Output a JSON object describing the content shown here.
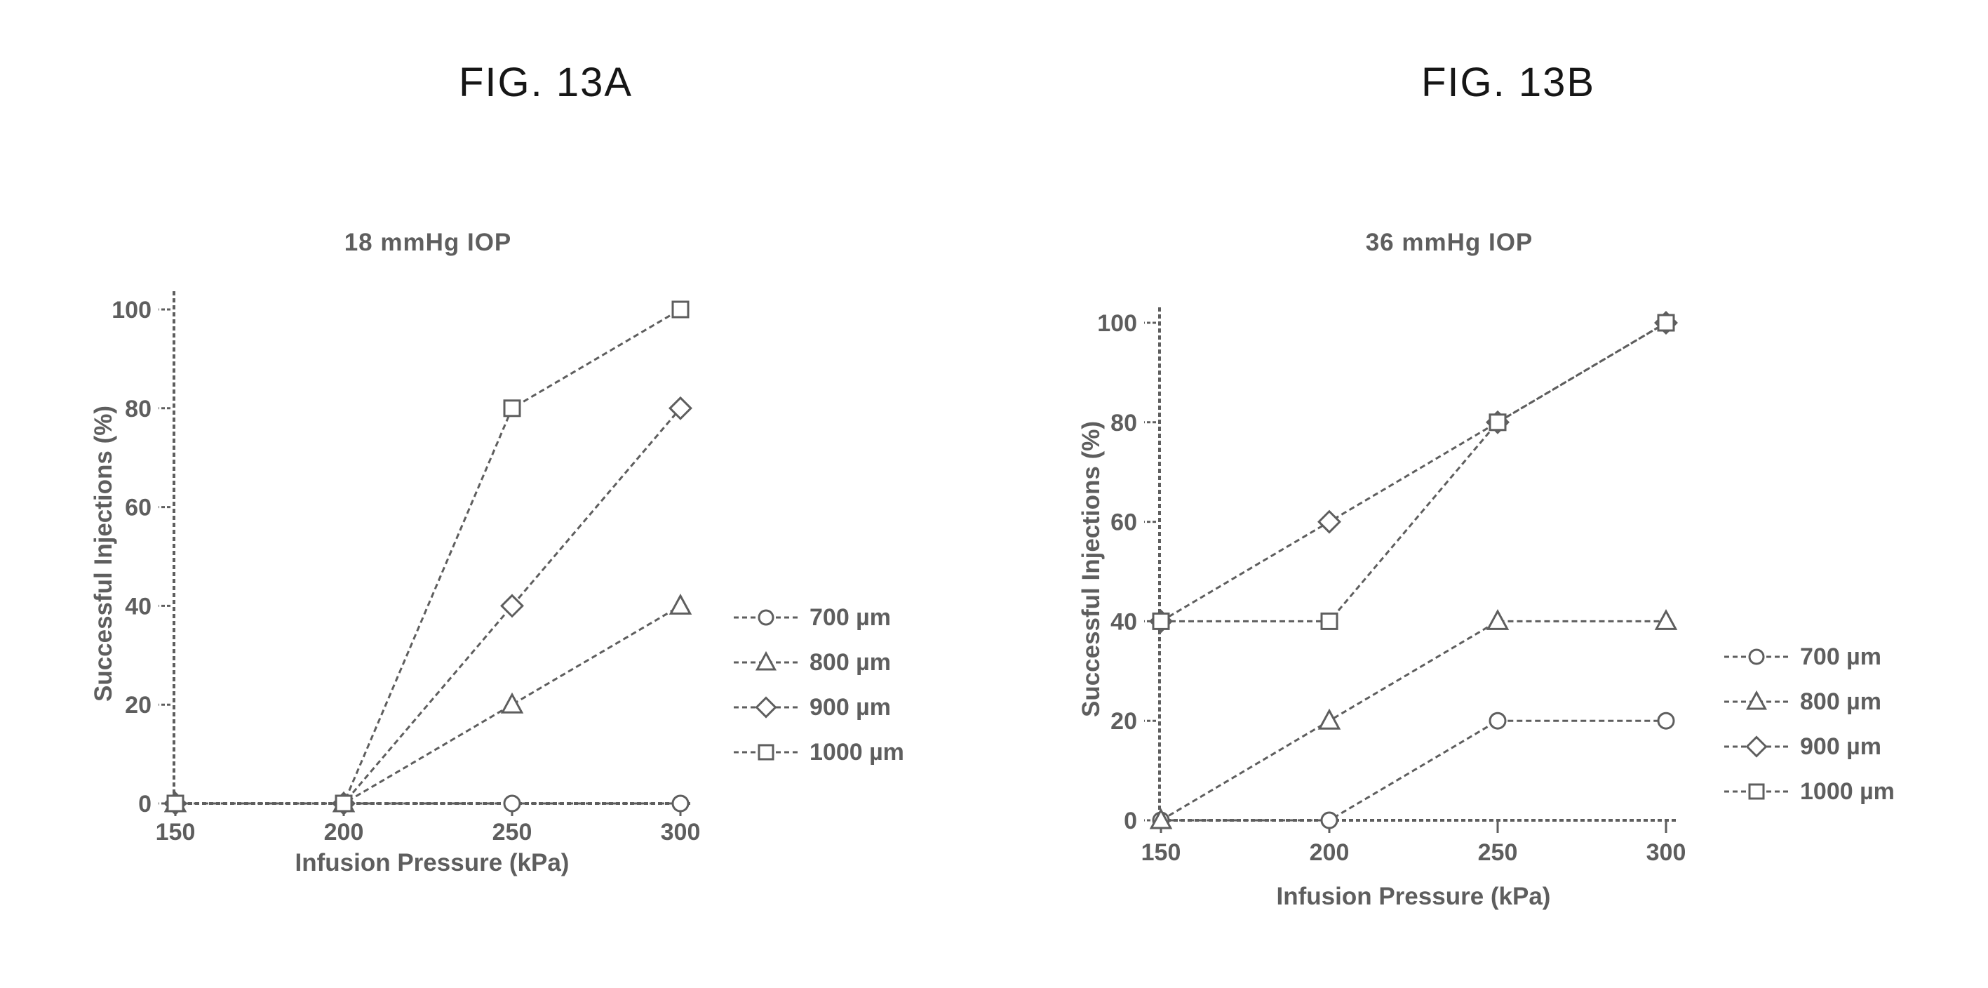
{
  "style": {
    "background": "#ffffff",
    "ink": "#5e5e5e",
    "fig_label_color": "#161616"
  },
  "figures": [
    {
      "label": "FIG. 13A"
    },
    {
      "label": "FIG. 13B"
    }
  ],
  "chart_data": [
    {
      "type": "line",
      "title": "18 mmHg IOP",
      "xlabel": "Infusion Pressure (kPa)",
      "ylabel": "Successful Injections (%)",
      "x": [
        150,
        200,
        250,
        300
      ],
      "xticks": [
        150,
        200,
        250,
        300
      ],
      "yticks": [
        0,
        20,
        40,
        60,
        80,
        100
      ],
      "xlim": [
        150,
        303
      ],
      "ylim": [
        0,
        104
      ],
      "grid": false,
      "line_style": "dashed",
      "legend_position": "right-outside",
      "series": [
        {
          "name": "700 µm",
          "marker": "circle",
          "values": [
            0,
            0,
            0,
            0
          ]
        },
        {
          "name": "800 µm",
          "marker": "triangle",
          "values": [
            0,
            0,
            20,
            40
          ]
        },
        {
          "name": "900 µm",
          "marker": "diamond",
          "values": [
            0,
            0,
            40,
            80
          ]
        },
        {
          "name": "1000 µm",
          "marker": "square",
          "values": [
            0,
            0,
            80,
            100
          ]
        }
      ]
    },
    {
      "type": "line",
      "title": "36 mmHg IOP",
      "xlabel": "Infusion Pressure (kPa)",
      "ylabel": "Successful Injections (%)",
      "x": [
        150,
        200,
        250,
        300
      ],
      "xticks": [
        150,
        200,
        250,
        300
      ],
      "yticks": [
        0,
        20,
        40,
        60,
        80,
        100
      ],
      "xlim": [
        150,
        303
      ],
      "ylim": [
        0,
        104
      ],
      "grid": false,
      "line_style": "dashed",
      "legend_position": "right-outside",
      "series": [
        {
          "name": "700 µm",
          "marker": "circle",
          "values": [
            0,
            0,
            20,
            20
          ]
        },
        {
          "name": "800 µm",
          "marker": "triangle",
          "values": [
            0,
            20,
            40,
            40
          ]
        },
        {
          "name": "900 µm",
          "marker": "diamond",
          "values": [
            40,
            60,
            80,
            100
          ]
        },
        {
          "name": "1000 µm",
          "marker": "square",
          "values": [
            40,
            40,
            80,
            100
          ]
        }
      ]
    }
  ]
}
